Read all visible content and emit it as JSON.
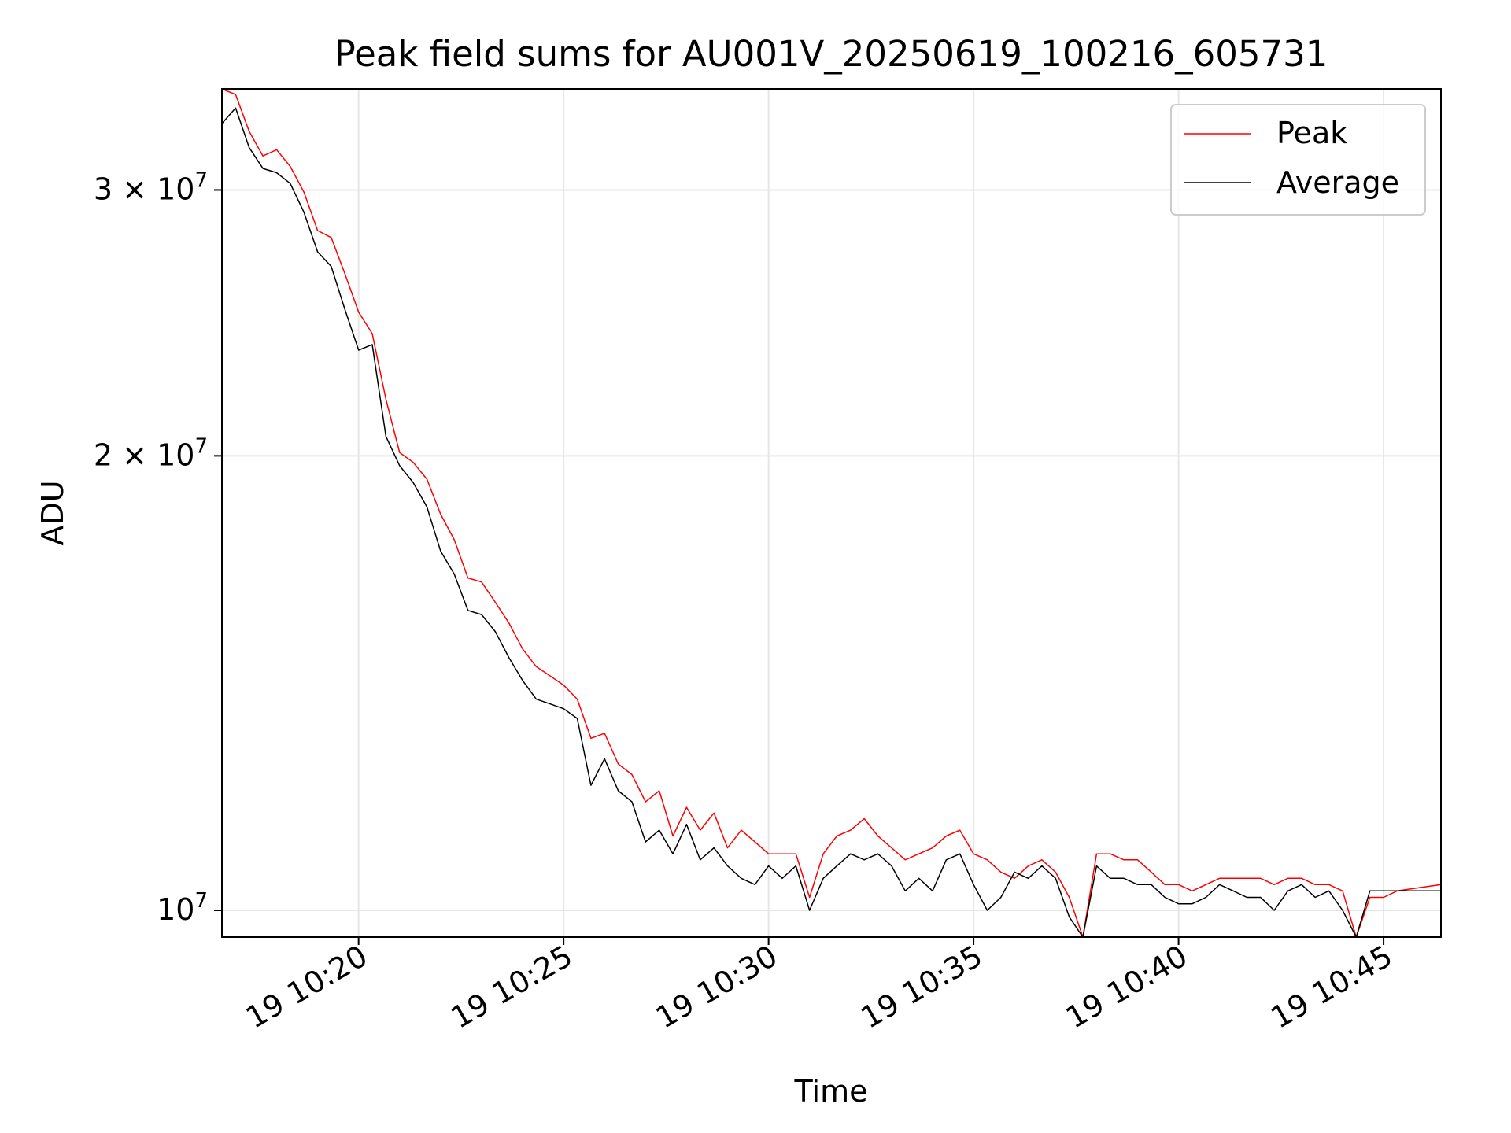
{
  "chart_data": {
    "type": "line",
    "title": "Peak field sums for AU001V_20250619_100216_605731",
    "xlabel": "Time",
    "ylabel": "ADU",
    "yscale": "log",
    "xlim": [
      "10:16:40",
      "10:46:24"
    ],
    "ylim": [
      9600000,
      35000000
    ],
    "grid": true,
    "legend_position": "top-right",
    "x_ticks": [
      {
        "time": "10:20",
        "label": "19 10:20"
      },
      {
        "time": "10:25",
        "label": "19 10:25"
      },
      {
        "time": "10:30",
        "label": "19 10:30"
      },
      {
        "time": "10:35",
        "label": "19 10:35"
      },
      {
        "time": "10:40",
        "label": "19 10:40"
      },
      {
        "time": "10:45",
        "label": "19 10:45"
      }
    ],
    "y_ticks": [
      {
        "value": 10000000,
        "base": "10",
        "exp": "7"
      },
      {
        "value": 20000000,
        "base": "2 × 10",
        "exp": "7"
      },
      {
        "value": 30000000,
        "base": "3 × 10",
        "exp": "7"
      }
    ],
    "series": [
      {
        "name": "Peak",
        "color": "#ff0000",
        "points": [
          [
            "10:16:40",
            35000000
          ],
          [
            "10:17:00",
            34700000
          ],
          [
            "10:17:20",
            32800000
          ],
          [
            "10:17:40",
            31600000
          ],
          [
            "10:18:00",
            31900000
          ],
          [
            "10:18:20",
            31100000
          ],
          [
            "10:18:40",
            29900000
          ],
          [
            "10:19:00",
            28200000
          ],
          [
            "10:19:20",
            27900000
          ],
          [
            "10:19:40",
            26400000
          ],
          [
            "10:20:00",
            24900000
          ],
          [
            "10:20:20",
            24100000
          ],
          [
            "10:20:40",
            21800000
          ],
          [
            "10:21:00",
            20100000
          ],
          [
            "10:21:20",
            19800000
          ],
          [
            "10:21:40",
            19300000
          ],
          [
            "10:22:00",
            18300000
          ],
          [
            "10:22:20",
            17600000
          ],
          [
            "10:22:40",
            16600000
          ],
          [
            "10:23:00",
            16500000
          ],
          [
            "10:23:20",
            16000000
          ],
          [
            "10:23:40",
            15500000
          ],
          [
            "10:24:00",
            14900000
          ],
          [
            "10:24:20",
            14500000
          ],
          [
            "10:24:40",
            14300000
          ],
          [
            "10:25:00",
            14100000
          ],
          [
            "10:25:20",
            13800000
          ],
          [
            "10:25:40",
            13000000
          ],
          [
            "10:26:00",
            13100000
          ],
          [
            "10:26:20",
            12500000
          ],
          [
            "10:26:40",
            12300000
          ],
          [
            "10:27:00",
            11800000
          ],
          [
            "10:27:20",
            12000000
          ],
          [
            "10:27:40",
            11200000
          ],
          [
            "10:28:00",
            11700000
          ],
          [
            "10:28:20",
            11300000
          ],
          [
            "10:28:40",
            11600000
          ],
          [
            "10:29:00",
            11000000
          ],
          [
            "10:29:20",
            11300000
          ],
          [
            "10:29:40",
            11100000
          ],
          [
            "10:30:00",
            10900000
          ],
          [
            "10:30:20",
            10900000
          ],
          [
            "10:30:40",
            10900000
          ],
          [
            "10:31:00",
            10200000
          ],
          [
            "10:31:20",
            10900000
          ],
          [
            "10:31:40",
            11200000
          ],
          [
            "10:32:00",
            11300000
          ],
          [
            "10:32:20",
            11500000
          ],
          [
            "10:32:40",
            11200000
          ],
          [
            "10:33:00",
            11000000
          ],
          [
            "10:33:20",
            10800000
          ],
          [
            "10:33:40",
            10900000
          ],
          [
            "10:34:00",
            11000000
          ],
          [
            "10:34:20",
            11200000
          ],
          [
            "10:34:40",
            11300000
          ],
          [
            "10:35:00",
            10900000
          ],
          [
            "10:35:20",
            10800000
          ],
          [
            "10:35:40",
            10600000
          ],
          [
            "10:36:00",
            10500000
          ],
          [
            "10:36:20",
            10700000
          ],
          [
            "10:36:40",
            10800000
          ],
          [
            "10:37:00",
            10600000
          ],
          [
            "10:37:20",
            10200000
          ],
          [
            "10:37:40",
            9500000
          ],
          [
            "10:38:00",
            10900000
          ],
          [
            "10:38:20",
            10900000
          ],
          [
            "10:38:40",
            10800000
          ],
          [
            "10:39:00",
            10800000
          ],
          [
            "10:39:20",
            10600000
          ],
          [
            "10:39:40",
            10400000
          ],
          [
            "10:40:00",
            10400000
          ],
          [
            "10:40:20",
            10300000
          ],
          [
            "10:40:40",
            10400000
          ],
          [
            "10:41:00",
            10500000
          ],
          [
            "10:41:20",
            10500000
          ],
          [
            "10:41:40",
            10500000
          ],
          [
            "10:42:00",
            10500000
          ],
          [
            "10:42:20",
            10400000
          ],
          [
            "10:42:40",
            10500000
          ],
          [
            "10:43:00",
            10500000
          ],
          [
            "10:43:20",
            10400000
          ],
          [
            "10:43:40",
            10400000
          ],
          [
            "10:44:00",
            10300000
          ],
          [
            "10:44:20",
            9500000
          ],
          [
            "10:44:40",
            10200000
          ],
          [
            "10:45:00",
            10200000
          ],
          [
            "10:45:20",
            10300000
          ],
          [
            "10:46:24",
            10400000
          ]
        ]
      },
      {
        "name": "Average",
        "color": "#000000",
        "points": [
          [
            "10:16:40",
            33200000
          ],
          [
            "10:17:00",
            34000000
          ],
          [
            "10:17:20",
            32000000
          ],
          [
            "10:17:40",
            31000000
          ],
          [
            "10:18:00",
            30800000
          ],
          [
            "10:18:20",
            30300000
          ],
          [
            "10:18:40",
            29000000
          ],
          [
            "10:19:00",
            27300000
          ],
          [
            "10:19:20",
            26700000
          ],
          [
            "10:19:40",
            25000000
          ],
          [
            "10:20:00",
            23500000
          ],
          [
            "10:20:20",
            23700000
          ],
          [
            "10:20:40",
            20600000
          ],
          [
            "10:21:00",
            19700000
          ],
          [
            "10:21:20",
            19200000
          ],
          [
            "10:21:40",
            18500000
          ],
          [
            "10:22:00",
            17300000
          ],
          [
            "10:22:20",
            16700000
          ],
          [
            "10:22:40",
            15800000
          ],
          [
            "10:23:00",
            15700000
          ],
          [
            "10:23:20",
            15300000
          ],
          [
            "10:23:40",
            14700000
          ],
          [
            "10:24:00",
            14200000
          ],
          [
            "10:24:20",
            13800000
          ],
          [
            "10:24:40",
            13700000
          ],
          [
            "10:25:00",
            13600000
          ],
          [
            "10:25:20",
            13400000
          ],
          [
            "10:25:40",
            12100000
          ],
          [
            "10:26:00",
            12600000
          ],
          [
            "10:26:20",
            12000000
          ],
          [
            "10:26:40",
            11800000
          ],
          [
            "10:27:00",
            11100000
          ],
          [
            "10:27:20",
            11300000
          ],
          [
            "10:27:40",
            10900000
          ],
          [
            "10:28:00",
            11400000
          ],
          [
            "10:28:20",
            10800000
          ],
          [
            "10:28:40",
            11000000
          ],
          [
            "10:29:00",
            10700000
          ],
          [
            "10:29:20",
            10500000
          ],
          [
            "10:29:40",
            10400000
          ],
          [
            "10:30:00",
            10700000
          ],
          [
            "10:30:20",
            10500000
          ],
          [
            "10:30:40",
            10700000
          ],
          [
            "10:31:00",
            10000000
          ],
          [
            "10:31:20",
            10500000
          ],
          [
            "10:31:40",
            10700000
          ],
          [
            "10:32:00",
            10900000
          ],
          [
            "10:32:20",
            10800000
          ],
          [
            "10:32:40",
            10900000
          ],
          [
            "10:33:00",
            10700000
          ],
          [
            "10:33:20",
            10300000
          ],
          [
            "10:33:40",
            10500000
          ],
          [
            "10:34:00",
            10300000
          ],
          [
            "10:34:20",
            10800000
          ],
          [
            "10:34:40",
            10900000
          ],
          [
            "10:35:00",
            10400000
          ],
          [
            "10:35:20",
            10000000
          ],
          [
            "10:35:40",
            10200000
          ],
          [
            "10:36:00",
            10600000
          ],
          [
            "10:36:20",
            10500000
          ],
          [
            "10:36:40",
            10700000
          ],
          [
            "10:37:00",
            10500000
          ],
          [
            "10:37:20",
            9900000
          ],
          [
            "10:37:40",
            9600000
          ],
          [
            "10:38:00",
            10700000
          ],
          [
            "10:38:20",
            10500000
          ],
          [
            "10:38:40",
            10500000
          ],
          [
            "10:39:00",
            10400000
          ],
          [
            "10:39:20",
            10400000
          ],
          [
            "10:39:40",
            10200000
          ],
          [
            "10:40:00",
            10100000
          ],
          [
            "10:40:20",
            10100000
          ],
          [
            "10:40:40",
            10200000
          ],
          [
            "10:41:00",
            10400000
          ],
          [
            "10:41:20",
            10300000
          ],
          [
            "10:41:40",
            10200000
          ],
          [
            "10:42:00",
            10200000
          ],
          [
            "10:42:20",
            10000000
          ],
          [
            "10:42:40",
            10300000
          ],
          [
            "10:43:00",
            10400000
          ],
          [
            "10:43:20",
            10200000
          ],
          [
            "10:43:40",
            10300000
          ],
          [
            "10:44:00",
            10000000
          ],
          [
            "10:44:20",
            9600000
          ],
          [
            "10:44:40",
            10300000
          ],
          [
            "10:45:00",
            10300000
          ],
          [
            "10:45:20",
            10300000
          ],
          [
            "10:46:24",
            10300000
          ]
        ]
      }
    ]
  }
}
